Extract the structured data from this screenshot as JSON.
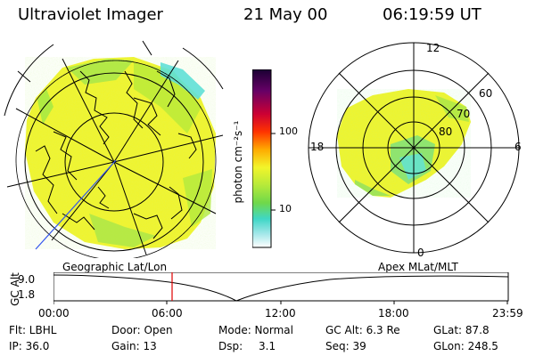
{
  "header": {
    "instrument": "Ultraviolet Imager",
    "date": "21 May 00",
    "time": "06:19:59 UT"
  },
  "colorbar": {
    "unit_label": "photon cm⁻²s⁻¹",
    "ticks": [
      "100",
      "10"
    ],
    "scale": "log"
  },
  "polar_plot": {
    "clock_labels": [
      "12",
      "18",
      "6",
      "0"
    ],
    "lat_labels": [
      "60",
      "70",
      "80"
    ]
  },
  "timeline": {
    "left_title": "Geographic Lat/Lon",
    "right_title": "Apex MLat/MLT",
    "y_axis_label": "GC Alt",
    "y_ticks": [
      "9.0",
      "1.8"
    ],
    "x_ticks": [
      "00:00",
      "06:00",
      "12:00",
      "18:00",
      "23:59"
    ],
    "marker_time": "06:19:59",
    "marker_color": "#e00000"
  },
  "footer": {
    "filter": "Flt: LBHL",
    "ip": "IP: 36.0",
    "door": "Door: Open",
    "gain": "Gain: 13",
    "mode": "Mode: Normal",
    "dsp_label": "Dsp:",
    "dsp_value": "3.1",
    "gc_alt": "GC Alt: 6.3 Re",
    "seq": "Seq: 39",
    "glat": "GLat: 87.8",
    "glon": "GLon: 248.5"
  },
  "colors": {
    "yellow": "#f4f52a",
    "green": "#9ee63c",
    "cyan": "#5fe2d9"
  }
}
